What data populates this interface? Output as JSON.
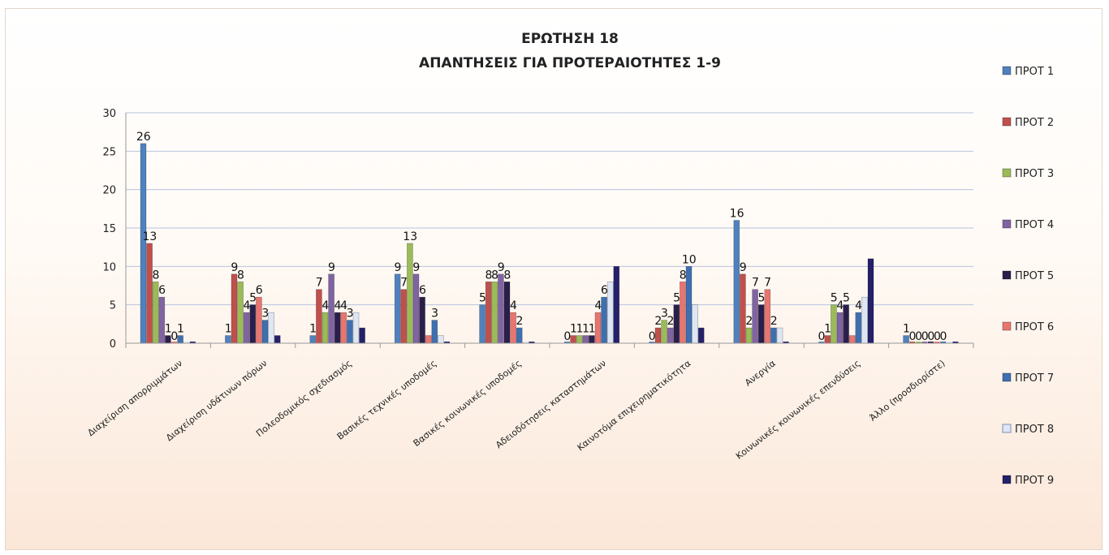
{
  "chart_data": {
    "type": "bar",
    "title": "ΕΡΩΤΗΣΗ 18",
    "subtitle": "ΑΠΑΝΤΗΣΕΙΣ ΓΙΑ ΠΡΟΤΕΡΑΙΟΤΗΤΕΣ 1-9",
    "xlabel": "",
    "ylabel": "",
    "ylim": [
      0,
      30
    ],
    "yticks": [
      0,
      5,
      10,
      15,
      20,
      25,
      30
    ],
    "grid": true,
    "legend_position": "right",
    "categories": [
      "Διαχείριση απορριμμάτων",
      "Διαχείριση υδάτινων πόρων",
      "Πολεοδομικός σχεδιασμός",
      "Βασικές τεχνικές υποδομές",
      "Βασικές κοινωνικές υποδομές",
      "Αδειοδότησεις καταστημάτων",
      "Καινοτόμα επιχειρηματικότητα",
      "Ανεργία",
      "Κοινωνικές κοινωνικές επενδύσεις",
      "Άλλο (προσδιορίστε)"
    ],
    "series": [
      {
        "name": "ΠΡΟΤ 1",
        "color": "#4f81bd",
        "values": [
          26,
          1,
          1,
          9,
          5,
          0,
          0,
          16,
          0,
          1
        ]
      },
      {
        "name": "ΠΡΟΤ 2",
        "color": "#c0504d",
        "values": [
          13,
          9,
          7,
          7,
          8,
          1,
          2,
          9,
          1,
          0
        ]
      },
      {
        "name": "ΠΡΟΤ 3",
        "color": "#9bbb59",
        "values": [
          8,
          8,
          4,
          13,
          8,
          1,
          3,
          2,
          5,
          0
        ]
      },
      {
        "name": "ΠΡΟΤ 4",
        "color": "#8064a2",
        "values": [
          6,
          4,
          9,
          9,
          9,
          1,
          2,
          7,
          4,
          0
        ]
      },
      {
        "name": "ΠΡΟΤ 5",
        "color": "#2a1f4a",
        "values": [
          1,
          5,
          4,
          6,
          8,
          1,
          5,
          5,
          5,
          0
        ]
      },
      {
        "name": "ΠΡΟΤ 6",
        "color": "#e8756f",
        "values": [
          0,
          6,
          4,
          1,
          4,
          4,
          8,
          7,
          1,
          0
        ]
      },
      {
        "name": "ΠΡΟΤ 7",
        "color": "#3e6fb0",
        "values": [
          1,
          3,
          3,
          3,
          2,
          6,
          10,
          2,
          4,
          0
        ]
      },
      {
        "name": "ΠΡΟΤ 8",
        "color": "#dde6f4",
        "values": [
          0,
          4,
          4,
          1,
          0,
          8,
          5,
          2,
          6,
          0
        ]
      },
      {
        "name": "ΠΡΟΤ 9",
        "color": "#25206a",
        "values": [
          0,
          1,
          2,
          0,
          0,
          10,
          2,
          0,
          11,
          0
        ]
      }
    ],
    "data_labels": [
      [
        "26",
        "13",
        "8",
        "6",
        "1",
        "0",
        "1",
        "",
        ""
      ],
      [
        "1",
        "9",
        "8",
        "4",
        "5",
        "6",
        "3",
        "",
        ""
      ],
      [
        "1",
        "7",
        "4",
        "9",
        "4",
        "4",
        "3",
        "",
        ""
      ],
      [
        "9",
        "7",
        "13",
        "9",
        "6",
        "",
        "3",
        "",
        ""
      ],
      [
        "5",
        "8",
        "8",
        "9",
        "8",
        "4",
        "2",
        "",
        ""
      ],
      [
        "0",
        "1",
        "1",
        "1",
        "1",
        "4",
        "6",
        "",
        ""
      ],
      [
        "0",
        "2",
        "3",
        "2",
        "5",
        "8",
        "10",
        "",
        ""
      ],
      [
        "16",
        "9",
        "2",
        "7",
        "5",
        "7",
        "2",
        "",
        ""
      ],
      [
        "0",
        "1",
        "5",
        "4",
        "5",
        "",
        "4",
        "",
        ""
      ],
      [
        "1",
        "0",
        "0",
        "0",
        "0",
        "0",
        "0",
        "",
        ""
      ]
    ]
  }
}
